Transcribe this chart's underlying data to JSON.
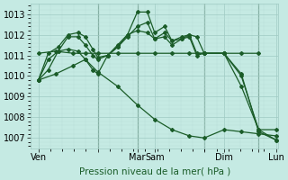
{
  "background_color": "#c5eae3",
  "grid_color_major": "#9fc9c2",
  "grid_color_minor": "#b8ddd7",
  "line_color": "#1a5c28",
  "xlabel": "Pression niveau de la mer( hPa )",
  "xlabel_fontsize": 7.5,
  "tick_fontsize": 7,
  "ylim": [
    1006.5,
    1013.5
  ],
  "yticks": [
    1007,
    1008,
    1009,
    1010,
    1011,
    1012,
    1013
  ],
  "xlim": [
    0,
    100
  ],
  "x_tick_positions": [
    3,
    27,
    43,
    50,
    70,
    78,
    92,
    99
  ],
  "x_tick_labels": [
    "Ven",
    "",
    "Mar",
    "Sam",
    "",
    "Dim",
    "",
    "Lun"
  ],
  "vlines": [
    27,
    43,
    70,
    92
  ],
  "marker": "D",
  "markersize": 2.0,
  "linewidth": 0.9,
  "lines": [
    {
      "x": [
        3,
        10,
        17,
        22,
        27,
        35,
        43,
        50,
        57,
        64,
        70,
        78,
        85,
        92
      ],
      "y": [
        1011.1,
        1011.2,
        1011.1,
        1011.1,
        1011.1,
        1011.1,
        1011.1,
        1011.1,
        1011.1,
        1011.1,
        1011.1,
        1011.1,
        1011.1,
        1011.1
      ]
    },
    {
      "x": [
        3,
        7,
        11,
        15,
        19,
        22,
        25,
        27,
        31,
        35,
        39,
        43,
        47,
        50,
        54,
        57,
        61,
        64,
        67,
        70,
        78,
        85,
        92,
        99
      ],
      "y": [
        1009.8,
        1010.3,
        1011.2,
        1011.9,
        1011.9,
        1011.5,
        1011.0,
        1010.8,
        1011.0,
        1011.5,
        1012.0,
        1013.1,
        1013.1,
        1012.1,
        1012.4,
        1011.7,
        1011.8,
        1012.0,
        1011.9,
        1011.1,
        1011.1,
        1010.0,
        1007.4,
        1006.9
      ]
    },
    {
      "x": [
        3,
        7,
        11,
        15,
        19,
        22,
        25,
        27,
        31,
        35,
        39,
        43,
        47,
        50,
        54,
        57,
        61,
        64,
        67,
        70,
        78,
        85,
        92,
        99
      ],
      "y": [
        1009.8,
        1011.1,
        1011.4,
        1012.0,
        1012.1,
        1011.9,
        1011.3,
        1010.9,
        1011.0,
        1011.4,
        1011.9,
        1012.4,
        1012.6,
        1011.8,
        1012.1,
        1011.7,
        1011.9,
        1012.0,
        1011.1,
        1011.1,
        1011.1,
        1010.1,
        1007.3,
        1006.9
      ]
    },
    {
      "x": [
        3,
        7,
        11,
        15,
        19,
        22,
        25,
        27,
        31,
        35,
        39,
        43,
        47,
        50,
        54,
        57,
        61,
        64,
        67,
        70,
        78,
        85,
        92,
        99
      ],
      "y": [
        1009.8,
        1010.8,
        1011.2,
        1011.3,
        1011.2,
        1010.8,
        1010.3,
        1010.1,
        1011.0,
        1011.4,
        1012.0,
        1012.2,
        1012.1,
        1011.8,
        1011.9,
        1011.5,
        1011.8,
        1011.9,
        1011.0,
        1011.1,
        1011.1,
        1009.5,
        1007.4,
        1007.4
      ]
    },
    {
      "x": [
        3,
        10,
        17,
        22,
        27,
        35,
        43,
        50,
        57,
        64,
        70,
        78,
        85,
        92,
        99
      ],
      "y": [
        1009.8,
        1010.1,
        1010.5,
        1010.8,
        1010.2,
        1009.5,
        1008.6,
        1007.9,
        1007.4,
        1007.1,
        1007.0,
        1007.4,
        1007.3,
        1007.2,
        1007.1
      ]
    }
  ]
}
